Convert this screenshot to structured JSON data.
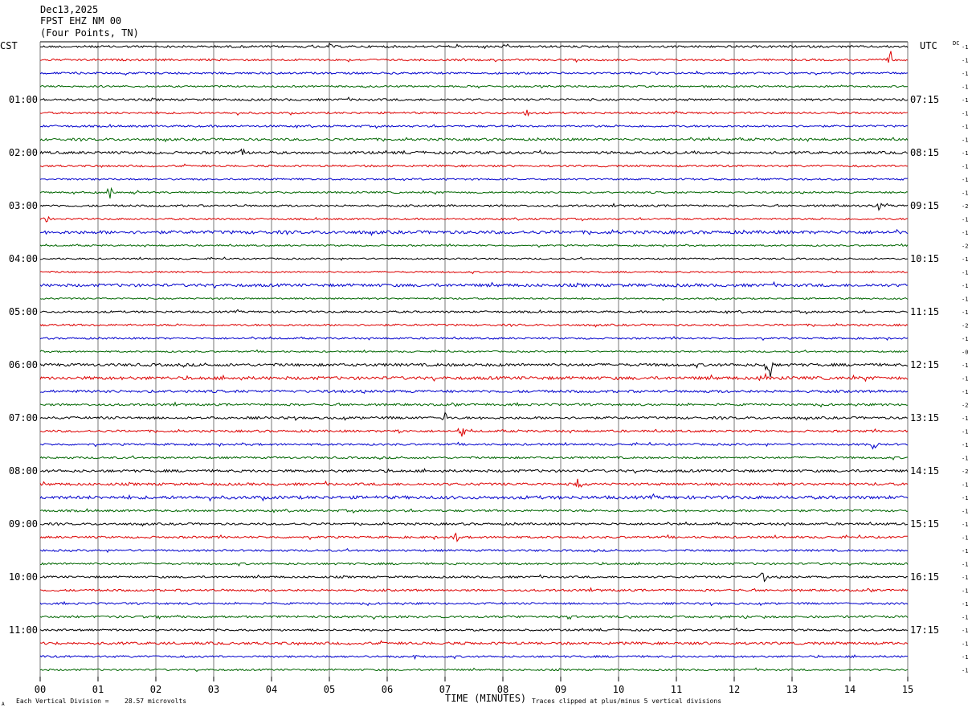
{
  "header": {
    "date": "Dec13,2025",
    "station": "FPST EHZ NM 00",
    "location": "(Four Points, TN)"
  },
  "left_timezone": "CST",
  "right_timezone": "UTC",
  "dc_label": "DC",
  "footer": {
    "vertical_division_prefix": "Each Vertical Division =",
    "vertical_division_value": "28.57 microvolts",
    "xlabel": "TIME (MINUTES)",
    "clip_note": "Traces clipped at plus/minus 5 vertical divisions",
    "corner_mark": "A"
  },
  "chart_data": {
    "type": "line",
    "title": "",
    "xlabel": "TIME (MINUTES)",
    "ylabel": "",
    "xlim": [
      0,
      15
    ],
    "x_tick_labels": [
      "00",
      "01",
      "02",
      "03",
      "04",
      "05",
      "06",
      "07",
      "08",
      "09",
      "10",
      "11",
      "12",
      "13",
      "14",
      "15"
    ],
    "trace_colors": [
      "#000000",
      "#dd0000",
      "#0000cc",
      "#006600"
    ],
    "trace_count": 48,
    "hour_labels_left": [
      "01:00",
      "02:00",
      "03:00",
      "04:00",
      "05:00",
      "06:00",
      "07:00",
      "08:00",
      "09:00",
      "10:00",
      "11:00"
    ],
    "hour_labels_right": [
      "07:15",
      "08:15",
      "09:15",
      "10:15",
      "11:15",
      "12:15",
      "13:15",
      "14:15",
      "15:15",
      "16:15",
      "17:15"
    ],
    "dc_offsets": [
      "-1",
      "-1",
      "-1",
      "-1",
      "-1",
      "-1",
      "-1",
      "-1",
      "-1",
      "-1",
      "-1",
      "-1",
      "-2",
      "-1",
      "-1",
      "-2",
      "-1",
      "-1",
      "-1",
      "-1",
      "-1",
      "-2",
      "-1",
      "-0",
      "-1",
      "-1",
      "-1",
      "-2",
      "-1",
      "-1",
      "-1",
      "-1",
      "-2",
      "-1",
      "-1",
      "-1",
      "-1",
      "-1",
      "-1",
      "-1",
      "-1",
      "-1",
      "-1",
      "-1",
      "-1",
      "-1",
      "-1",
      "-1"
    ],
    "noise_level": [
      1.1,
      1.0,
      1.0,
      0.9,
      1.1,
      1.0,
      1.0,
      1.2,
      1.3,
      1.0,
      0.9,
      0.9,
      1.0,
      0.9,
      1.6,
      0.8,
      0.8,
      0.8,
      1.5,
      0.8,
      1.0,
      1.0,
      0.9,
      0.8,
      1.4,
      1.6,
      1.3,
      1.1,
      1.2,
      1.1,
      1.0,
      1.0,
      1.3,
      1.3,
      1.6,
      1.1,
      1.1,
      1.1,
      1.0,
      1.0,
      1.0,
      1.1,
      1.0,
      1.1,
      1.0,
      1.3,
      1.0,
      0.9
    ],
    "events": [
      {
        "trace": 0,
        "minute": 5.0,
        "amp": 5
      },
      {
        "trace": 1,
        "minute": 14.7,
        "amp": 12
      },
      {
        "trace": 5,
        "minute": 8.4,
        "amp": 8
      },
      {
        "trace": 8,
        "minute": 3.5,
        "amp": 6
      },
      {
        "trace": 11,
        "minute": 1.2,
        "amp": 10
      },
      {
        "trace": 12,
        "minute": 14.5,
        "amp": 6
      },
      {
        "trace": 13,
        "minute": 0.1,
        "amp": 6
      },
      {
        "trace": 24,
        "minute": 12.6,
        "amp": 22
      },
      {
        "trace": 25,
        "minute": 12.5,
        "amp": 10
      },
      {
        "trace": 28,
        "minute": 7.0,
        "amp": 8
      },
      {
        "trace": 29,
        "minute": 6.2,
        "amp": 8
      },
      {
        "trace": 29,
        "minute": 7.3,
        "amp": 8
      },
      {
        "trace": 30,
        "minute": 14.4,
        "amp": 10
      },
      {
        "trace": 33,
        "minute": 9.3,
        "amp": 9
      },
      {
        "trace": 37,
        "minute": 7.2,
        "amp": 7
      },
      {
        "trace": 40,
        "minute": 12.5,
        "amp": 10
      },
      {
        "trace": 46,
        "minute": 6.5,
        "amp": 4
      }
    ]
  }
}
